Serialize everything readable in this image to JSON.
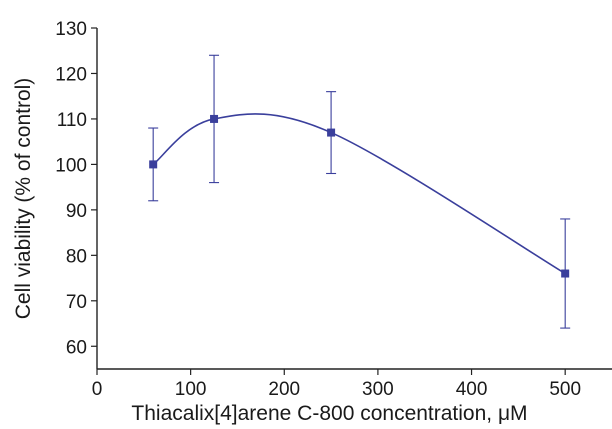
{
  "chart_data": {
    "type": "line",
    "title": "",
    "xlabel": "Thiacalix[4]arene C-800 concentration, μM",
    "ylabel": "Cell viability (% of control)",
    "xlim": [
      0,
      550
    ],
    "ylim": [
      55,
      130
    ],
    "xticks": [
      0,
      100,
      200,
      300,
      400,
      500
    ],
    "yticks": [
      60,
      70,
      80,
      90,
      100,
      110,
      120,
      130
    ],
    "grid": false,
    "legend": "none",
    "series": [
      {
        "x": [
          60,
          125,
          250,
          500
        ],
        "y": [
          100,
          110,
          107,
          76
        ],
        "err_low": [
          92,
          96,
          98,
          64
        ],
        "err_high": [
          108,
          124,
          116,
          88
        ],
        "color": "#3a3f9c",
        "marker": "square"
      }
    ]
  }
}
